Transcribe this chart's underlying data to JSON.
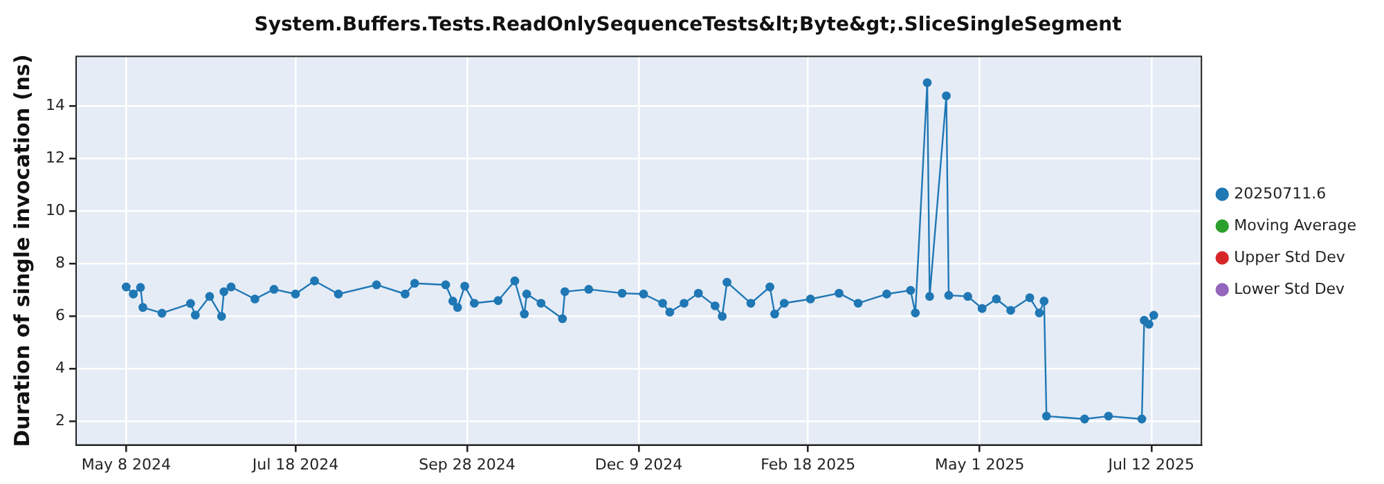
{
  "chart_data": {
    "type": "line",
    "title": "System.Buffers.Tests.ReadOnlySequenceTests&lt;Byte&gt;.SliceSingleSegment",
    "ylabel": "Duration of single invocation (ns)",
    "xlim": [
      "2024-04-17",
      "2025-08-02"
    ],
    "xticks": [
      {
        "value": "2024-05-08",
        "label": "May 8 2024"
      },
      {
        "value": "2024-07-18",
        "label": "Jul 18 2024"
      },
      {
        "value": "2024-09-28",
        "label": "Sep 28 2024"
      },
      {
        "value": "2024-12-09",
        "label": "Dec 9 2024"
      },
      {
        "value": "2025-02-18",
        "label": "Feb 18 2025"
      },
      {
        "value": "2025-05-01",
        "label": "May 1 2025"
      },
      {
        "value": "2025-07-12",
        "label": "Jul 12 2025"
      }
    ],
    "ylim": [
      1.1,
      15.9
    ],
    "yticks": [
      2,
      4,
      6,
      8,
      10,
      12,
      14
    ],
    "grid": true,
    "legend": "right",
    "marker": "circle",
    "line_style": "solid",
    "series": [
      {
        "name": "20250711.6",
        "color": "#1f77b4",
        "x": [
          "2024-05-08",
          "2024-05-11",
          "2024-05-14",
          "2024-05-15",
          "2024-05-23",
          "2024-06-04",
          "2024-06-06",
          "2024-06-12",
          "2024-06-17",
          "2024-06-18",
          "2024-06-21",
          "2024-07-01",
          "2024-07-09",
          "2024-07-18",
          "2024-07-26",
          "2024-08-05",
          "2024-08-21",
          "2024-09-02",
          "2024-09-06",
          "2024-09-19",
          "2024-09-22",
          "2024-09-24",
          "2024-09-27",
          "2024-10-01",
          "2024-10-11",
          "2024-10-18",
          "2024-10-22",
          "2024-10-23",
          "2024-10-29",
          "2024-11-07",
          "2024-11-08",
          "2024-11-18",
          "2024-12-02",
          "2024-12-11",
          "2024-12-19",
          "2024-12-22",
          "2024-12-28",
          "2025-01-03",
          "2025-01-10",
          "2025-01-13",
          "2025-01-15",
          "2025-01-25",
          "2025-02-02",
          "2025-02-04",
          "2025-02-08",
          "2025-02-19",
          "2025-03-03",
          "2025-03-11",
          "2025-03-23",
          "2025-04-02",
          "2025-04-04",
          "2025-04-09",
          "2025-04-10",
          "2025-04-17",
          "2025-04-18",
          "2025-04-26",
          "2025-05-02",
          "2025-05-08",
          "2025-05-14",
          "2025-05-22",
          "2025-05-26",
          "2025-05-28",
          "2025-05-29",
          "2025-06-14",
          "2025-06-24",
          "2025-07-08",
          "2025-07-09",
          "2025-07-11",
          "2025-07-13"
        ],
        "values": [
          7.12,
          6.85,
          7.1,
          6.34,
          6.12,
          6.49,
          6.05,
          6.76,
          6.0,
          6.94,
          7.12,
          6.66,
          7.03,
          6.85,
          7.35,
          6.85,
          7.2,
          6.85,
          7.26,
          7.2,
          6.58,
          6.34,
          7.15,
          6.5,
          6.6,
          7.35,
          6.09,
          6.85,
          6.5,
          5.91,
          6.94,
          7.03,
          6.88,
          6.85,
          6.5,
          6.16,
          6.5,
          6.88,
          6.4,
          6.0,
          7.3,
          6.5,
          7.12,
          6.09,
          6.5,
          6.66,
          6.88,
          6.5,
          6.85,
          6.99,
          6.13,
          14.9,
          6.76,
          14.4,
          6.8,
          6.76,
          6.3,
          6.66,
          6.23,
          6.71,
          6.13,
          6.58,
          2.2,
          2.09,
          2.2,
          2.09,
          5.85,
          5.7,
          6.04
        ]
      },
      {
        "name": "Moving Average",
        "color": "#2ca02c"
      },
      {
        "name": "Upper Std Dev",
        "color": "#d62728"
      },
      {
        "name": "Lower Std Dev",
        "color": "#9467bd"
      }
    ]
  }
}
